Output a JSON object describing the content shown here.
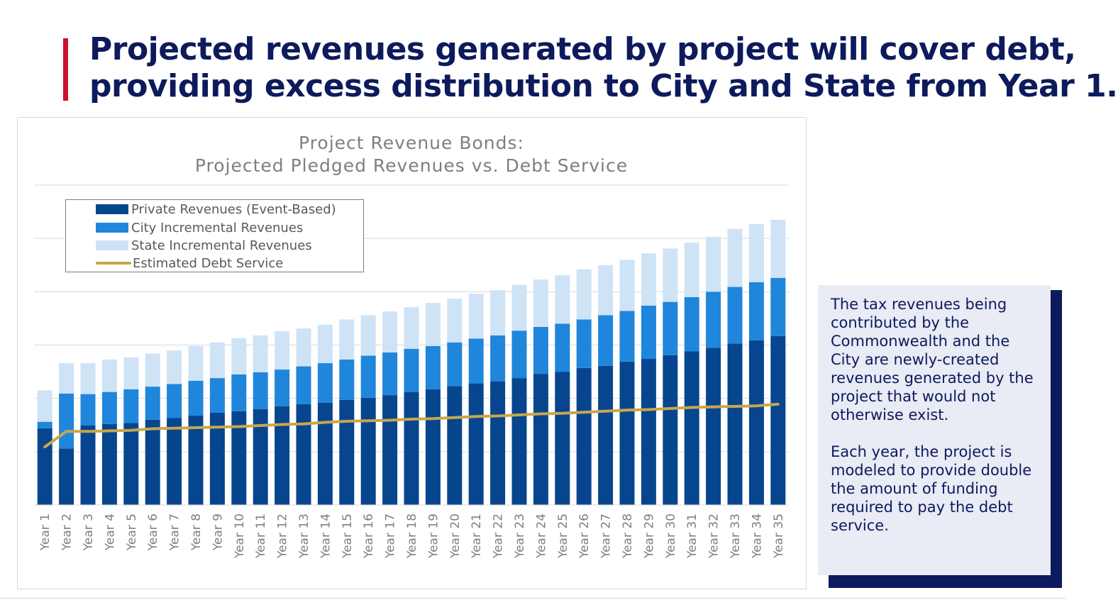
{
  "slide": {
    "title_line1": "Projected revenues generated by project will cover debt,",
    "title_line2": "providing excess distribution to City and State from Year 1.",
    "accent_color": "#c8102e",
    "title_color": "#0d1a5c"
  },
  "note": {
    "paragraph1": "The tax revenues being contributed by the Commonwealth and the City are newly-created revenues generated by the project that would not otherwise exist.",
    "paragraph2": "Each year, the project is modeled to provide double the amount of funding required to pay the debt service."
  },
  "chart_data": {
    "type": "bar",
    "stacked": true,
    "title_line1": "Project Revenue Bonds:",
    "title_line2": "Projected Pledged Revenues vs. Debt Service",
    "categories": [
      "Year 1",
      "Year 2",
      "Year 3",
      "Year 4",
      "Year 5",
      "Year 6",
      "Year 7",
      "Year 8",
      "Year 9",
      "Year 10",
      "Year 11",
      "Year 12",
      "Year 13",
      "Year 14",
      "Year 15",
      "Year 16",
      "Year 17",
      "Year 18",
      "Year 19",
      "Year 20",
      "Year 21",
      "Year 22",
      "Year 23",
      "Year 24",
      "Year 25",
      "Year 26",
      "Year 27",
      "Year 28",
      "Year 29",
      "Year 30",
      "Year 31",
      "Year 32",
      "Year 33",
      "Year 34",
      "Year 35"
    ],
    "ylim": [
      0,
      6
    ],
    "y_tick_labels_visible": false,
    "grid": "horizontal",
    "legend_position": "top-left",
    "series": [
      {
        "name": "Private Revenues (Event-Based)",
        "kind": "bar",
        "color": "#07468f",
        "values": [
          1.44,
          1.06,
          1.49,
          1.52,
          1.54,
          1.6,
          1.63,
          1.68,
          1.73,
          1.76,
          1.8,
          1.85,
          1.89,
          1.92,
          1.97,
          2.01,
          2.06,
          2.12,
          2.17,
          2.23,
          2.28,
          2.32,
          2.38,
          2.46,
          2.5,
          2.57,
          2.61,
          2.69,
          2.74,
          2.81,
          2.88,
          2.95,
          3.03,
          3.09,
          3.17
        ]
      },
      {
        "name": "City Incremental Revenues",
        "kind": "bar",
        "color": "#1f86db",
        "values": [
          0.12,
          1.03,
          0.59,
          0.6,
          0.63,
          0.62,
          0.64,
          0.65,
          0.65,
          0.69,
          0.69,
          0.69,
          0.71,
          0.74,
          0.76,
          0.79,
          0.8,
          0.81,
          0.81,
          0.82,
          0.84,
          0.86,
          0.89,
          0.88,
          0.9,
          0.91,
          0.95,
          0.95,
          1.0,
          1.0,
          1.02,
          1.05,
          1.06,
          1.09,
          1.09
        ]
      },
      {
        "name": "State Incremental Revenues",
        "kind": "bar",
        "color": "#cfe3f7",
        "values": [
          0.59,
          0.57,
          0.58,
          0.61,
          0.6,
          0.62,
          0.63,
          0.65,
          0.67,
          0.68,
          0.69,
          0.72,
          0.71,
          0.72,
          0.75,
          0.76,
          0.77,
          0.78,
          0.81,
          0.82,
          0.84,
          0.85,
          0.86,
          0.89,
          0.91,
          0.94,
          0.94,
          0.96,
          0.98,
          1.0,
          1.02,
          1.03,
          1.09,
          1.09,
          1.09
        ]
      },
      {
        "name": "Estimated Debt Service",
        "kind": "line",
        "color": "#c9a64b",
        "values": [
          1.09,
          1.38,
          1.38,
          1.39,
          1.4,
          1.43,
          1.44,
          1.45,
          1.46,
          1.47,
          1.49,
          1.51,
          1.52,
          1.55,
          1.57,
          1.58,
          1.59,
          1.61,
          1.62,
          1.64,
          1.66,
          1.67,
          1.69,
          1.71,
          1.72,
          1.74,
          1.76,
          1.78,
          1.79,
          1.81,
          1.83,
          1.84,
          1.85,
          1.86,
          1.89
        ]
      }
    ]
  }
}
